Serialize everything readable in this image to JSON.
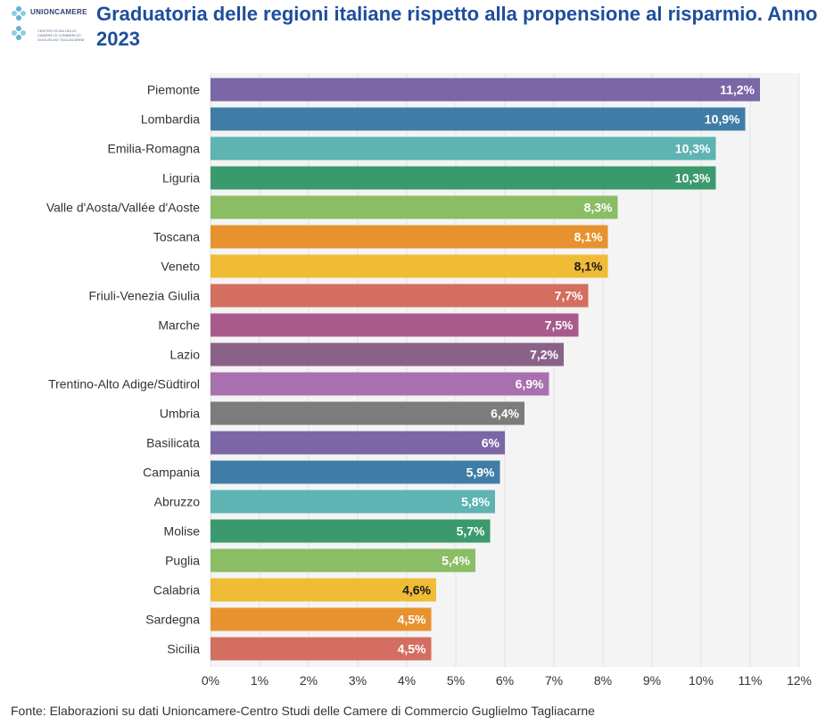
{
  "header": {
    "title": "Graduatoria delle regioni italiane rispetto alla propensione al risparmio. Anno 2023",
    "logo_text": "UNIONCAMERE",
    "logo_subtext": "CENTRO STUDI DELLE CAMERE DI COMMERCIO GUGLIELMO TAGLIACARNE"
  },
  "footer": {
    "source": "Fonte: Elaborazioni su dati Unioncamere-Centro Studi delle Camere di Commercio Guglielmo Tagliacarne"
  },
  "chart_data": {
    "type": "bar",
    "orientation": "horizontal",
    "title": "Graduatoria delle regioni italiane rispetto alla propensione al risparmio. Anno 2023",
    "xlabel": "",
    "ylabel": "",
    "xlim": [
      0,
      12
    ],
    "x_ticks": [
      "0%",
      "1%",
      "2%",
      "3%",
      "4%",
      "5%",
      "6%",
      "7%",
      "8%",
      "9%",
      "10%",
      "11%",
      "12%"
    ],
    "grid": true,
    "categories": [
      "Piemonte",
      "Lombardia",
      "Emilia-Romagna",
      "Liguria",
      "Valle d'Aosta/Vallée d'Aoste",
      "Toscana",
      "Veneto",
      "Friuli-Venezia Giulia",
      "Marche",
      "Lazio",
      "Trentino-Alto Adige/Südtirol",
      "Umbria",
      "Basilicata",
      "Campania",
      "Abruzzo",
      "Molise",
      "Puglia",
      "Calabria",
      "Sardegna",
      "Sicilia"
    ],
    "values": [
      11.2,
      10.9,
      10.3,
      10.3,
      8.3,
      8.1,
      8.1,
      7.7,
      7.5,
      7.2,
      6.9,
      6.4,
      6.0,
      5.9,
      5.8,
      5.7,
      5.4,
      4.6,
      4.5,
      4.5
    ],
    "labels": [
      "11,2%",
      "10,9%",
      "10,3%",
      "10,3%",
      "8,3%",
      "8,1%",
      "8,1%",
      "7,7%",
      "7,5%",
      "7,2%",
      "6,9%",
      "6,4%",
      "6%",
      "5,9%",
      "5,8%",
      "5,7%",
      "5,4%",
      "4,6%",
      "4,5%",
      "4,5%"
    ],
    "colors": [
      "#7b66a6",
      "#3f7da6",
      "#5eb3b3",
      "#3a9a6e",
      "#8abd64",
      "#e8922f",
      "#f0bc35",
      "#d46e61",
      "#a85b8a",
      "#8a6288",
      "#a870ae",
      "#7c7c7c",
      "#7b66a6",
      "#3f7da6",
      "#5eb3b3",
      "#3a9a6e",
      "#8abd64",
      "#f0bc35",
      "#e8922f",
      "#d46e61"
    ],
    "label_colors": [
      "#ffffff",
      "#ffffff",
      "#ffffff",
      "#ffffff",
      "#ffffff",
      "#ffffff",
      "#1a1a1a",
      "#ffffff",
      "#ffffff",
      "#ffffff",
      "#ffffff",
      "#ffffff",
      "#ffffff",
      "#ffffff",
      "#ffffff",
      "#ffffff",
      "#ffffff",
      "#1a1a1a",
      "#ffffff",
      "#ffffff"
    ],
    "plot_background": "#f4f4f4"
  }
}
